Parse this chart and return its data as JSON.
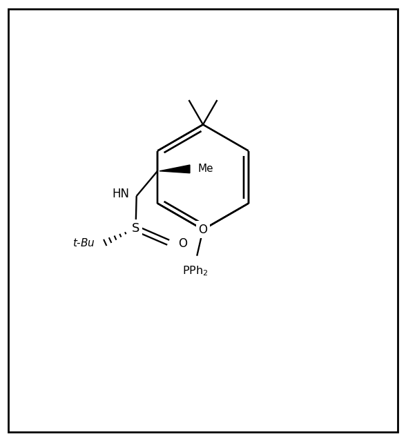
{
  "figsize": [
    5.88,
    6.39
  ],
  "dpi": 100,
  "lw": 1.7,
  "lw_thin": 1.2,
  "border_lw": 2.0,
  "font_size_label": 11,
  "font_size_atom": 12,
  "xlim": [
    0,
    10
  ],
  "ylim": [
    0,
    10.85
  ]
}
